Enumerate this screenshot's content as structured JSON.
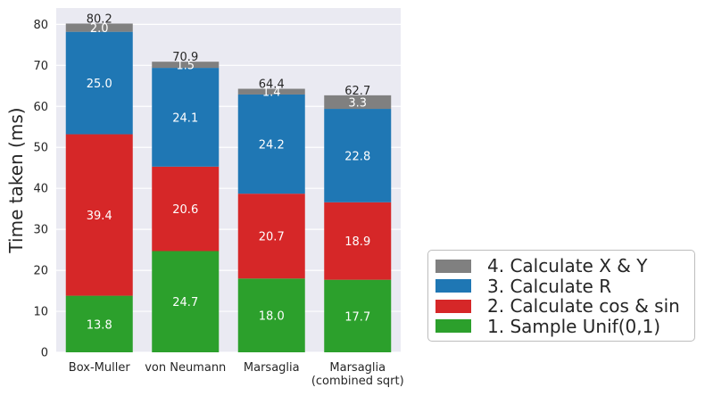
{
  "chart_data": {
    "type": "bar",
    "stacked": true,
    "title": "",
    "xlabel": "",
    "ylabel": "Time taken (ms)",
    "ylim": [
      0,
      84
    ],
    "yticks": [
      0,
      10,
      20,
      30,
      40,
      50,
      60,
      70,
      80
    ],
    "grid": true,
    "legend_position": "lower-right-outside",
    "categories": [
      [
        "Box-Muller"
      ],
      [
        "von Neumann"
      ],
      [
        "Marsaglia"
      ],
      [
        "Marsaglia",
        "(combined sqrt)"
      ]
    ],
    "series": [
      {
        "name": "1. Sample Unif(0,1)",
        "color": "#2ca02c",
        "values": [
          13.8,
          24.7,
          18.0,
          17.7
        ]
      },
      {
        "name": "2. Calculate cos & sin",
        "color": "#d62728",
        "values": [
          39.4,
          20.6,
          20.7,
          18.9
        ]
      },
      {
        "name": "3. Calculate R",
        "color": "#1f77b4",
        "values": [
          25.0,
          24.1,
          24.2,
          22.8
        ]
      },
      {
        "name": "4. Calculate X & Y",
        "color": "#808080",
        "values": [
          2.0,
          1.5,
          1.4,
          3.3
        ]
      }
    ],
    "totals": [
      "80.2",
      "70.9",
      "64.4",
      "62.7"
    ],
    "segment_labels": [
      [
        "13.8",
        "24.7",
        "18.0",
        "17.7"
      ],
      [
        "39.4",
        "20.6",
        "20.7",
        "18.9"
      ],
      [
        "25.0",
        "24.1",
        "24.2",
        "22.8"
      ],
      [
        "2.0",
        "1.5",
        "1.4",
        "3.3"
      ]
    ],
    "legend_order": [
      3,
      2,
      1,
      0
    ]
  }
}
